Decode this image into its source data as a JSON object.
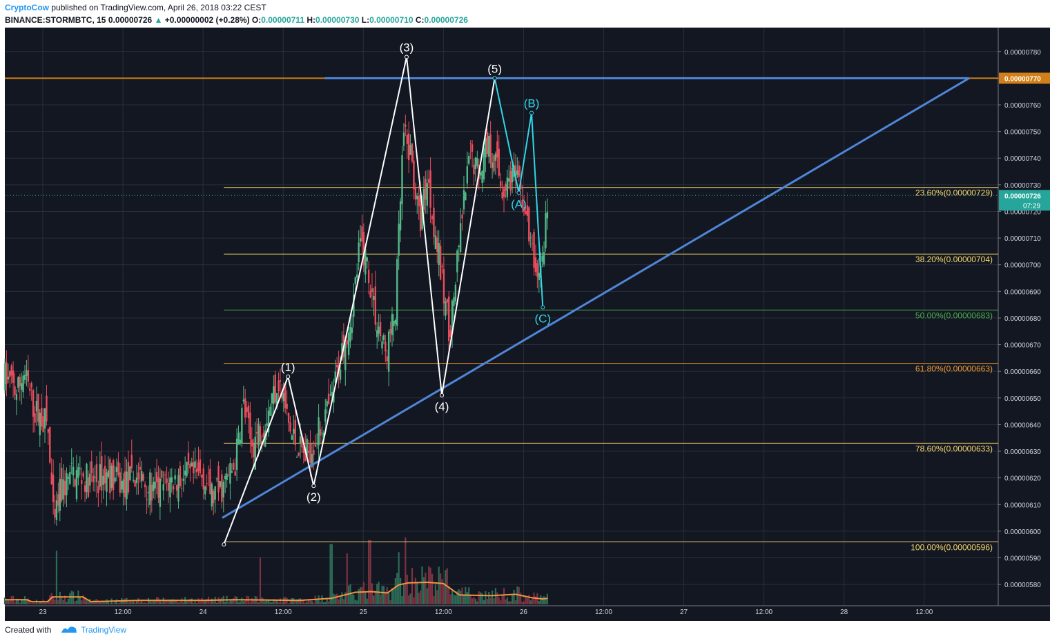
{
  "header": {
    "author": "CryptoCow",
    "published": "published on TradingView.com, April 26, 2018 03:22 CEST",
    "symbol": "BINANCE:STORMBTC, 15",
    "last": "0.00000726",
    "change": "+0.00000002 (+0.28%)",
    "o_label": "O:",
    "o_value": "0.00000711",
    "h_label": "H:",
    "h_value": "0.00000730",
    "l_label": "L:",
    "l_value": "0.00000710",
    "c_label": "C:",
    "c_value": "0.00000726"
  },
  "footer": {
    "created_with": "Created with",
    "brand": "TradingView"
  },
  "colors": {
    "background": "#131722",
    "grid": "#2a2e39",
    "up": "#53b987",
    "down": "#eb4d5c",
    "trendline": "#4f86d8",
    "resistance": "#d27f1a",
    "wave": "#ffffff",
    "corrective": "#32d6e6",
    "fib_yellow": "#f5d76e",
    "fib_green": "#4caf50",
    "fib_orange": "#f29b33",
    "volume_ma": "#f09640",
    "price_label_bg": "#26a69a"
  },
  "chart_data": {
    "type": "candlestick",
    "symbol": "BINANCE:STORMBTC",
    "interval": "15",
    "y_range": [
      5.72e-06,
      7.89e-06
    ],
    "y_ticks": [
      "0.00000780",
      "0.00000770",
      "0.00000760",
      "0.00000750",
      "0.00000740",
      "0.00000730",
      "0.00000720",
      "0.00000710",
      "0.00000700",
      "0.00000690",
      "0.00000680",
      "0.00000670",
      "0.00000660",
      "0.00000650",
      "0.00000640",
      "0.00000630",
      "0.00000620",
      "0.00000610",
      "0.00000600",
      "0.00000590",
      "0.00000580"
    ],
    "x_ticks": [
      "23",
      "12:00",
      "24",
      "12:00",
      "25",
      "12:00",
      "26",
      "12:00",
      "27",
      "12:00",
      "28",
      "12:00"
    ],
    "x_tick_days": [
      1,
      1.5,
      2,
      2.5,
      3,
      3.5,
      4,
      4.5,
      5,
      5.5,
      6,
      6.5
    ],
    "x_range_days": [
      0.763,
      6.962
    ],
    "price_path": [
      [
        0.763,
        6.58e-06
      ],
      [
        0.84,
        6.52e-06
      ],
      [
        0.88,
        6.6e-06
      ],
      [
        0.95,
        6.45e-06
      ],
      [
        1.03,
        6.4e-06
      ],
      [
        1.07,
        6e-06
      ],
      [
        1.1,
        6.13e-06
      ],
      [
        1.16,
        6.2e-06
      ],
      [
        1.22,
        6.22e-06
      ],
      [
        1.3,
        6.18e-06
      ],
      [
        1.4,
        6.21e-06
      ],
      [
        1.5,
        6.17e-06
      ],
      [
        1.6,
        6.21e-06
      ],
      [
        1.7,
        6.14e-06
      ],
      [
        1.8,
        6.19e-06
      ],
      [
        1.9,
        6.2e-06
      ],
      [
        2.0,
        6.21e-06
      ],
      [
        2.06,
        6.13e-06
      ],
      [
        2.12,
        6.16e-06
      ],
      [
        2.2,
        6.25e-06
      ],
      [
        2.25,
        6.48e-06
      ],
      [
        2.3,
        6.32e-06
      ],
      [
        2.38,
        6.41e-06
      ],
      [
        2.47,
        6.57e-06
      ],
      [
        2.55,
        6.36e-06
      ],
      [
        2.64,
        6.28e-06
      ],
      [
        2.72,
        6.37e-06
      ],
      [
        2.8,
        6.48e-06
      ],
      [
        2.88,
        6.72e-06
      ],
      [
        2.93,
        6.82e-06
      ],
      [
        2.98,
        7.08e-06
      ],
      [
        3.02,
        7.02e-06
      ],
      [
        3.08,
        6.8e-06
      ],
      [
        3.14,
        6.66e-06
      ],
      [
        3.2,
        6.82e-06
      ],
      [
        3.25,
        7.48e-06
      ],
      [
        3.3,
        7.4e-06
      ],
      [
        3.35,
        7.15e-06
      ],
      [
        3.4,
        7.33e-06
      ],
      [
        3.45,
        7.12e-06
      ],
      [
        3.5,
        6.9e-06
      ],
      [
        3.54,
        6.75e-06
      ],
      [
        3.58,
        6.96e-06
      ],
      [
        3.62,
        7.2e-06
      ],
      [
        3.67,
        7.42e-06
      ],
      [
        3.72,
        7.35e-06
      ],
      [
        3.77,
        7.46e-06
      ],
      [
        3.82,
        7.4e-06
      ],
      [
        3.87,
        7.28e-06
      ],
      [
        3.93,
        7.34e-06
      ],
      [
        4.0,
        7.24e-06
      ],
      [
        4.04,
        7.08e-06
      ],
      [
        4.08,
        6.96e-06
      ],
      [
        4.12,
        7.02e-06
      ],
      [
        4.15,
        7.25e-06
      ]
    ],
    "candle_noise_seed": 7,
    "volume_ma_path": [
      [
        0.763,
        0.35
      ],
      [
        0.9,
        0.35
      ],
      [
        0.93,
        0.2
      ],
      [
        1.03,
        0.2
      ],
      [
        1.06,
        0.55
      ],
      [
        1.25,
        0.55
      ],
      [
        1.3,
        0.2
      ],
      [
        1.6,
        0.3
      ],
      [
        2.0,
        0.3
      ],
      [
        2.2,
        0.35
      ],
      [
        2.6,
        0.3
      ],
      [
        2.8,
        0.45
      ],
      [
        2.95,
        0.9
      ],
      [
        3.05,
        0.95
      ],
      [
        3.15,
        0.85
      ],
      [
        3.22,
        1.45
      ],
      [
        3.28,
        1.6
      ],
      [
        3.4,
        1.65
      ],
      [
        3.5,
        1.55
      ],
      [
        3.6,
        0.7
      ],
      [
        3.8,
        0.65
      ],
      [
        3.95,
        0.75
      ],
      [
        4.05,
        0.5
      ],
      [
        4.12,
        0.4
      ],
      [
        4.15,
        0.45
      ]
    ],
    "volume_max": 5.2,
    "volume_spikes": [
      [
        1.09,
        4.0
      ],
      [
        2.36,
        3.5
      ],
      [
        2.8,
        4.5
      ],
      [
        2.9,
        3.8
      ],
      [
        3.04,
        4.8
      ],
      [
        3.22,
        3.9
      ],
      [
        3.26,
        5.0
      ],
      [
        3.52,
        2.7
      ]
    ],
    "resistance": {
      "price": 7.7e-06,
      "label": "0.00000770"
    },
    "trendlines": [
      {
        "name": "resistance-line",
        "points": [
          [
            2.76,
            7.7e-06
          ],
          [
            6.78,
            7.7e-06
          ]
        ]
      },
      {
        "name": "ascending-support",
        "points": [
          [
            2.12,
            6.05e-06
          ],
          [
            6.78,
            7.7e-06
          ]
        ]
      }
    ],
    "elliott_impulse": [
      {
        "label": "",
        "x": 2.13,
        "y": 5.95e-06
      },
      {
        "label": "(1)",
        "x": 2.53,
        "y": 6.58e-06
      },
      {
        "label": "(2)",
        "x": 2.69,
        "y": 6.17e-06
      },
      {
        "label": "(3)",
        "x": 3.27,
        "y": 7.78e-06
      },
      {
        "label": "(4)",
        "x": 3.49,
        "y": 6.51e-06
      },
      {
        "label": "(5)",
        "x": 3.82,
        "y": 7.7e-06
      }
    ],
    "elliott_corrective": [
      {
        "label": "",
        "x": 3.82,
        "y": 7.7e-06
      },
      {
        "label": "(A)",
        "x": 3.97,
        "y": 7.27e-06
      },
      {
        "label": "(B)",
        "x": 4.05,
        "y": 7.57e-06
      },
      {
        "label": "(C)",
        "x": 4.12,
        "y": 6.84e-06
      }
    ],
    "fibonacci": [
      {
        "level": "23.60%",
        "price": 7.29e-06,
        "text": "23.60%(0.00000729)"
      },
      {
        "level": "38.20%",
        "price": 7.04e-06,
        "text": "38.20%(0.00000704)"
      },
      {
        "level": "50.00%",
        "price": 6.83e-06,
        "text": "50.00%(0.00000683)"
      },
      {
        "level": "61.80%",
        "price": 6.63e-06,
        "text": "61.80%(0.00000663)"
      },
      {
        "level": "78.60%",
        "price": 6.33e-06,
        "text": "78.60%(0.00000633)"
      },
      {
        "level": "100.00%",
        "price": 5.96e-06,
        "text": "100.00%(0.00000596)"
      }
    ],
    "fib_start_day": 2.13,
    "current_price": {
      "price": 7.26e-06,
      "label": "0.00000726",
      "countdown": "07:29"
    }
  }
}
